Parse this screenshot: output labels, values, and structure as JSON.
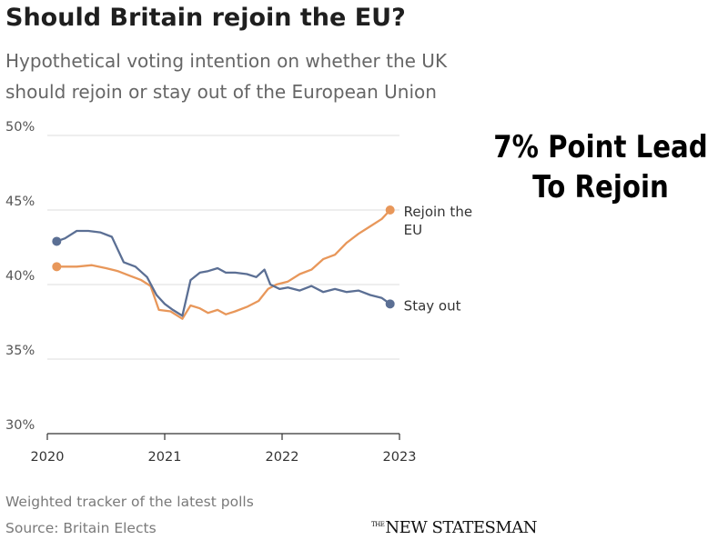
{
  "chart_data": {
    "type": "line",
    "title": "Should Britain rejoin the EU?",
    "subtitle_lines": [
      "Hypothetical voting intention on whether the UK",
      "should rejoin or stay out of the European Union"
    ],
    "xlabel": "",
    "ylabel": "",
    "x_range": [
      2020,
      2023
    ],
    "ylim": [
      30,
      50
    ],
    "y_ticks": [
      30,
      35,
      40,
      45,
      50
    ],
    "y_tick_labels": [
      "30%",
      "35%",
      "40%",
      "45%",
      "50%"
    ],
    "x_ticks": [
      2020,
      2021,
      2022,
      2023
    ],
    "x_tick_labels": [
      "2020",
      "2021",
      "2022",
      "2023"
    ],
    "grid": true,
    "series": [
      {
        "name": "Rejoin the EU",
        "label_lines": [
          "Rejoin the",
          "EU"
        ],
        "color": "#e8975a",
        "x": [
          2020.08,
          2020.25,
          2020.38,
          2020.5,
          2020.6,
          2020.7,
          2020.8,
          2020.88,
          2020.95,
          2021.05,
          2021.15,
          2021.22,
          2021.3,
          2021.37,
          2021.45,
          2021.52,
          2021.6,
          2021.7,
          2021.8,
          2021.88,
          2021.95,
          2022.05,
          2022.15,
          2022.25,
          2022.35,
          2022.45,
          2022.55,
          2022.65,
          2022.75,
          2022.85,
          2022.92
        ],
        "values": [
          41.2,
          41.2,
          41.3,
          41.1,
          40.9,
          40.6,
          40.3,
          39.9,
          38.3,
          38.2,
          37.7,
          38.6,
          38.4,
          38.1,
          38.3,
          38.0,
          38.2,
          38.5,
          38.9,
          39.7,
          40.0,
          40.2,
          40.7,
          41.0,
          41.7,
          42.0,
          42.8,
          43.4,
          43.9,
          44.4,
          45.0
        ]
      },
      {
        "name": "Stay out",
        "label_lines": [
          "Stay out"
        ],
        "color": "#5b6f94",
        "x": [
          2020.08,
          2020.15,
          2020.25,
          2020.35,
          2020.45,
          2020.55,
          2020.65,
          2020.75,
          2020.85,
          2020.93,
          2021.0,
          2021.07,
          2021.15,
          2021.22,
          2021.3,
          2021.37,
          2021.45,
          2021.52,
          2021.6,
          2021.7,
          2021.78,
          2021.85,
          2021.9,
          2021.98,
          2022.05,
          2022.15,
          2022.25,
          2022.35,
          2022.45,
          2022.55,
          2022.65,
          2022.75,
          2022.85,
          2022.92
        ],
        "values": [
          42.9,
          43.1,
          43.6,
          43.6,
          43.5,
          43.2,
          41.5,
          41.2,
          40.5,
          39.3,
          38.7,
          38.3,
          37.9,
          40.3,
          40.8,
          40.9,
          41.1,
          40.8,
          40.8,
          40.7,
          40.5,
          41.0,
          40.0,
          39.7,
          39.8,
          39.6,
          39.9,
          39.5,
          39.7,
          39.5,
          39.6,
          39.3,
          39.1,
          38.7
        ]
      }
    ],
    "source_notes": [
      "Weighted tracker of the latest polls",
      "Source: Britain Elects"
    ]
  },
  "callout": {
    "line1": "7% Point Lead",
    "line2": "To Rejoin"
  },
  "brand": {
    "the": "THE",
    "name": "NEW STATESMAN"
  }
}
